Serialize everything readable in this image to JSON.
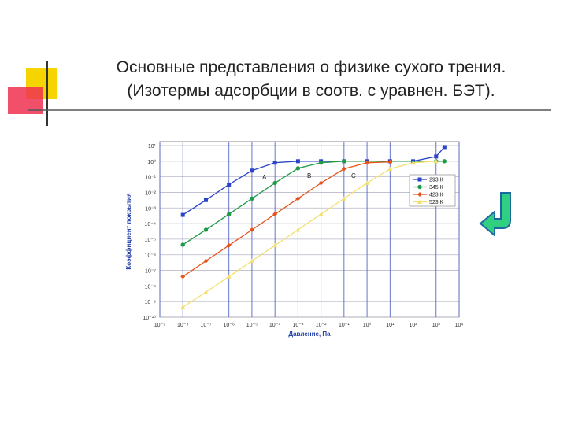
{
  "header": {
    "title_line1": "Основные представления о физике сухого трения.",
    "title_line2": "(Изотермы адсорбции в соотв. с уравнен. БЭТ)."
  },
  "chart_data": {
    "type": "line",
    "log_x": true,
    "log_y": true,
    "grid": true,
    "x_label": "Давление, Па",
    "y_label": "Коэффициент покрытия",
    "annotations": [
      "A",
      "B",
      "C"
    ],
    "legend": "upper right",
    "xlim": [
      1e-09,
      10000.0
    ],
    "ylim": [
      1e-10,
      10
    ],
    "xticks": [
      {
        "value": 1e-09,
        "label": "10⁻⁹"
      },
      {
        "value": 1e-08,
        "label": "10⁻⁸"
      },
      {
        "value": 1e-07,
        "label": "10⁻⁷"
      },
      {
        "value": 1e-06,
        "label": "10⁻⁶"
      },
      {
        "value": 1e-05,
        "label": "10⁻⁵"
      },
      {
        "value": 0.0001,
        "label": "10⁻⁴"
      },
      {
        "value": 0.001,
        "label": "10⁻³"
      },
      {
        "value": 0.01,
        "label": "10⁻²"
      },
      {
        "value": 0.1,
        "label": "10⁻¹"
      },
      {
        "value": 1,
        "label": "10⁰"
      },
      {
        "value": 10,
        "label": "10¹"
      },
      {
        "value": 100,
        "label": "10²"
      },
      {
        "value": 1000,
        "label": "10³"
      },
      {
        "value": 10000,
        "label": "10⁴"
      }
    ],
    "yticks": [
      {
        "value": 10,
        "label": "10¹"
      },
      {
        "value": 1,
        "label": "10⁰"
      },
      {
        "value": 0.1,
        "label": "10⁻¹"
      },
      {
        "value": 0.01,
        "label": "10⁻²"
      },
      {
        "value": 0.001,
        "label": "10⁻³"
      },
      {
        "value": 0.0001,
        "label": "10⁻⁴"
      },
      {
        "value": 1e-05,
        "label": "10⁻⁵"
      },
      {
        "value": 1e-06,
        "label": "10⁻⁶"
      },
      {
        "value": 1e-07,
        "label": "10⁻⁷"
      },
      {
        "value": 1e-08,
        "label": "10⁻⁸"
      },
      {
        "value": 1e-09,
        "label": "10⁻⁹"
      },
      {
        "value": 1e-10,
        "label": "10⁻¹⁰"
      }
    ],
    "series": [
      {
        "name": "293 К",
        "color": "#2a44c8",
        "marker": "square",
        "x": [
          1e-08,
          1e-07,
          1e-06,
          1e-05,
          0.0001,
          0.001,
          0.01,
          0.1,
          1,
          10,
          100,
          1000,
          2300
        ],
        "values": [
          0.00036,
          0.0032,
          0.032,
          0.25,
          0.8,
          1,
          1,
          1,
          1,
          1,
          1,
          2,
          8
        ]
      },
      {
        "name": "345 К",
        "color": "#1f9a45",
        "marker": "circle",
        "x": [
          1e-08,
          1e-07,
          1e-06,
          1e-05,
          0.0001,
          0.001,
          0.01,
          0.1,
          1000,
          2300
        ],
        "values": [
          4.4e-06,
          4e-05,
          0.0004,
          0.004,
          0.04,
          0.35,
          0.8,
          1,
          1,
          1
        ]
      },
      {
        "name": "423 К",
        "color": "#e8521c",
        "marker": "diamond",
        "x": [
          1e-08,
          1e-07,
          1e-06,
          1e-05,
          0.0001,
          0.001,
          0.01,
          0.1,
          1,
          10
        ],
        "values": [
          4e-08,
          4e-07,
          4e-06,
          4e-05,
          0.0004,
          0.004,
          0.04,
          0.32,
          0.8,
          0.9
        ]
      },
      {
        "name": "523 К",
        "color": "#f2e070",
        "marker": "triangle",
        "x": [
          1e-08,
          1e-07,
          1e-06,
          1e-05,
          0.0001,
          0.001,
          0.01,
          0.1,
          1,
          10,
          100,
          1000
        ],
        "values": [
          4.5e-10,
          4e-09,
          4e-08,
          4e-07,
          4e-06,
          4e-05,
          0.0004,
          0.004,
          0.04,
          0.32,
          0.8,
          1
        ]
      }
    ]
  }
}
